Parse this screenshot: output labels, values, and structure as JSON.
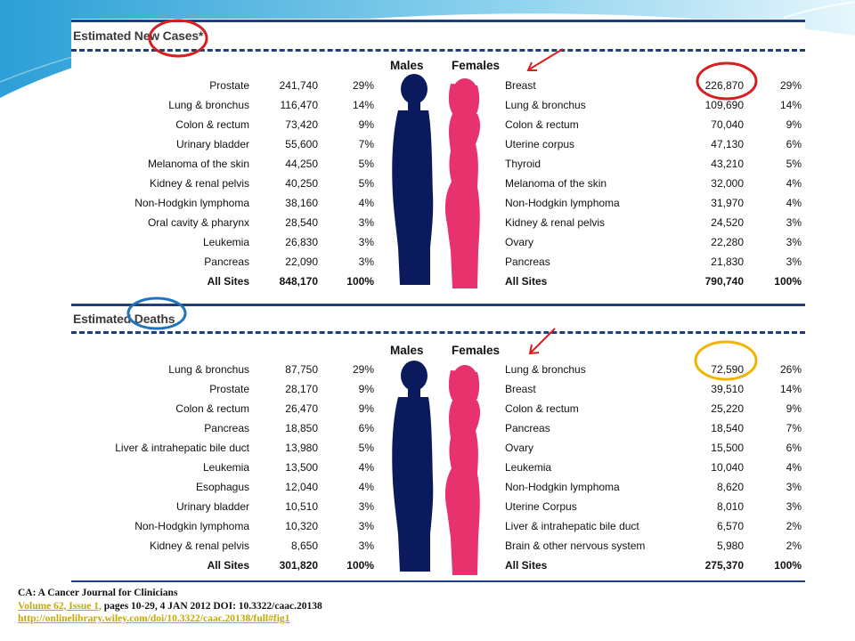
{
  "chart_data": [
    {
      "type": "table",
      "title": "Estimated New Cases*",
      "column_headers": [
        "Males",
        "Females"
      ],
      "males": [
        {
          "site": "Prostate",
          "count": "241,740",
          "percent": "29%"
        },
        {
          "site": "Lung & bronchus",
          "count": "116,470",
          "percent": "14%"
        },
        {
          "site": "Colon & rectum",
          "count": "73,420",
          "percent": "9%"
        },
        {
          "site": "Urinary bladder",
          "count": "55,600",
          "percent": "7%"
        },
        {
          "site": "Melanoma of the skin",
          "count": "44,250",
          "percent": "5%"
        },
        {
          "site": "Kidney & renal pelvis",
          "count": "40,250",
          "percent": "5%"
        },
        {
          "site": "Non-Hodgkin lymphoma",
          "count": "38,160",
          "percent": "4%"
        },
        {
          "site": "Oral cavity & pharynx",
          "count": "28,540",
          "percent": "3%"
        },
        {
          "site": "Leukemia",
          "count": "26,830",
          "percent": "3%"
        },
        {
          "site": "Pancreas",
          "count": "22,090",
          "percent": "3%"
        },
        {
          "site": "All Sites",
          "count": "848,170",
          "percent": "100%"
        }
      ],
      "females": [
        {
          "site": "Breast",
          "count": "226,870",
          "percent": "29%"
        },
        {
          "site": "Lung & bronchus",
          "count": "109,690",
          "percent": "14%"
        },
        {
          "site": "Colon & rectum",
          "count": "70,040",
          "percent": "9%"
        },
        {
          "site": "Uterine corpus",
          "count": "47,130",
          "percent": "6%"
        },
        {
          "site": "Thyroid",
          "count": "43,210",
          "percent": "5%"
        },
        {
          "site": "Melanoma of the skin",
          "count": "32,000",
          "percent": "4%"
        },
        {
          "site": "Non-Hodgkin lymphoma",
          "count": "31,970",
          "percent": "4%"
        },
        {
          "site": "Kidney & renal pelvis",
          "count": "24,520",
          "percent": "3%"
        },
        {
          "site": "Ovary",
          "count": "22,280",
          "percent": "3%"
        },
        {
          "site": "Pancreas",
          "count": "21,830",
          "percent": "3%"
        },
        {
          "site": "All Sites",
          "count": "790,740",
          "percent": "100%"
        }
      ]
    },
    {
      "type": "table",
      "title": "Estimated Deaths",
      "column_headers": [
        "Males",
        "Females"
      ],
      "males": [
        {
          "site": "Lung & bronchus",
          "count": "87,750",
          "percent": "29%"
        },
        {
          "site": "Prostate",
          "count": "28,170",
          "percent": "9%"
        },
        {
          "site": "Colon & rectum",
          "count": "26,470",
          "percent": "9%"
        },
        {
          "site": "Pancreas",
          "count": "18,850",
          "percent": "6%"
        },
        {
          "site": "Liver & intrahepatic bile duct",
          "count": "13,980",
          "percent": "5%"
        },
        {
          "site": "Leukemia",
          "count": "13,500",
          "percent": "4%"
        },
        {
          "site": "Esophagus",
          "count": "12,040",
          "percent": "4%"
        },
        {
          "site": "Urinary bladder",
          "count": "10,510",
          "percent": "3%"
        },
        {
          "site": "Non-Hodgkin lymphoma",
          "count": "10,320",
          "percent": "3%"
        },
        {
          "site": "Kidney & renal pelvis",
          "count": "8,650",
          "percent": "3%"
        },
        {
          "site": "All Sites",
          "count": "301,820",
          "percent": "100%"
        }
      ],
      "females": [
        {
          "site": "Lung & bronchus",
          "count": "72,590",
          "percent": "26%"
        },
        {
          "site": "Breast",
          "count": "39,510",
          "percent": "14%"
        },
        {
          "site": "Colon & rectum",
          "count": "25,220",
          "percent": "9%"
        },
        {
          "site": "Pancreas",
          "count": "18,540",
          "percent": "7%"
        },
        {
          "site": "Ovary",
          "count": "15,500",
          "percent": "6%"
        },
        {
          "site": "Leukemia",
          "count": "10,040",
          "percent": "4%"
        },
        {
          "site": "Non-Hodgkin lymphoma",
          "count": "8,620",
          "percent": "3%"
        },
        {
          "site": "Uterine Corpus",
          "count": "8,010",
          "percent": "3%"
        },
        {
          "site": "Liver & intrahepatic bile duct",
          "count": "6,570",
          "percent": "2%"
        },
        {
          "site": "Brain & other nervous system",
          "count": "5,980",
          "percent": "2%"
        },
        {
          "site": "All Sites",
          "count": "275,370",
          "percent": "100%"
        }
      ]
    }
  ],
  "citation": {
    "journal": "CA: A Cancer Journal for Clinicians",
    "volume_link": "Volume 62, Issue 1,",
    "details": " pages 10-29, 4 JAN 2012 DOI: 10.3322/caac.20138",
    "url": "http://onlinelibrary.wiley.com/doi/10.3322/caac.20138/full#fig1"
  },
  "colors": {
    "male_silhouette": "#0b1a5c",
    "female_silhouette": "#e8326d",
    "rule": "#1f3f7a",
    "annotation_red": "#d42020",
    "annotation_blue": "#1e73be",
    "annotation_gold": "#f0b400",
    "link": "#c5a800",
    "slide_accent": "#3aa8d8"
  },
  "icons": [
    "male-silhouette-icon",
    "female-silhouette-icon",
    "annotation-arrow-icon"
  ]
}
